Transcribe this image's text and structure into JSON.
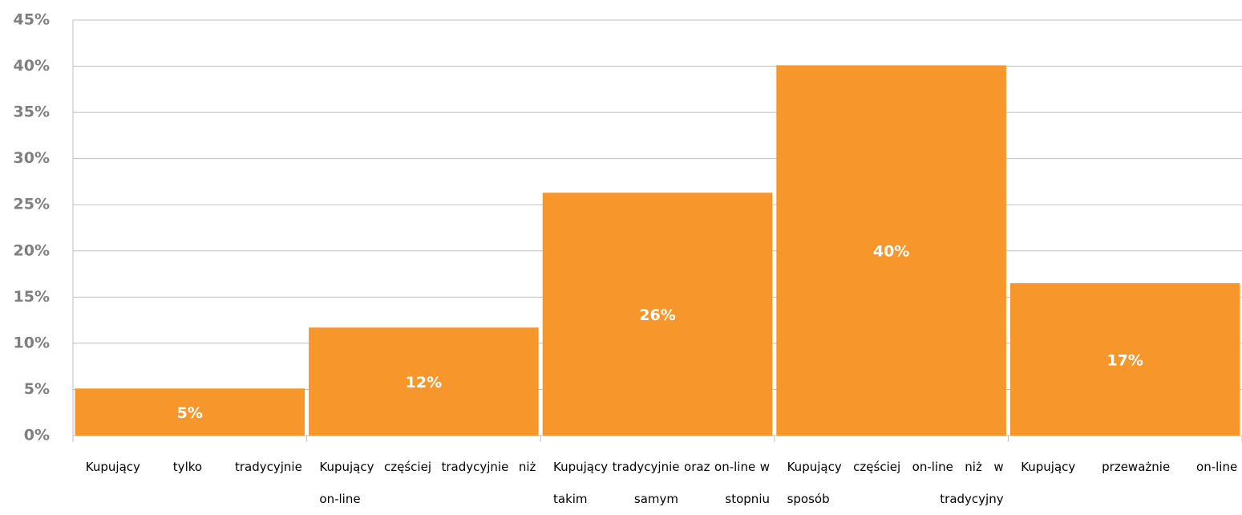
{
  "chart_data": {
    "type": "bar",
    "categories": [
      "Kupujący tylko tradycyjnie",
      "Kupujący częściej tradycyjnie niż on-line",
      "Kupujący tradycyjnie oraz on-line w takim samym stopniu",
      "Kupujący częściej on-line niż w sposób tradycyjny",
      "Kupujący przeważnie on-line"
    ],
    "values": [
      5.1,
      11.7,
      26.3,
      40.1,
      16.5
    ],
    "value_labels": [
      "5%",
      "12%",
      "26%",
      "40%",
      "17%"
    ],
    "color": "#f7972b",
    "ylim": [
      0,
      45
    ],
    "yticks": [
      {
        "value": 0,
        "label": "0%"
      },
      {
        "value": 5,
        "label": "5%"
      },
      {
        "value": 10,
        "label": "10%"
      },
      {
        "value": 15,
        "label": "15%"
      },
      {
        "value": 20,
        "label": "20%"
      },
      {
        "value": 25,
        "label": "25%"
      },
      {
        "value": 30,
        "label": "30%"
      },
      {
        "value": 35,
        "label": "35%"
      },
      {
        "value": 40,
        "label": "40%"
      },
      {
        "value": 45,
        "label": "45%"
      }
    ],
    "grid": true
  }
}
